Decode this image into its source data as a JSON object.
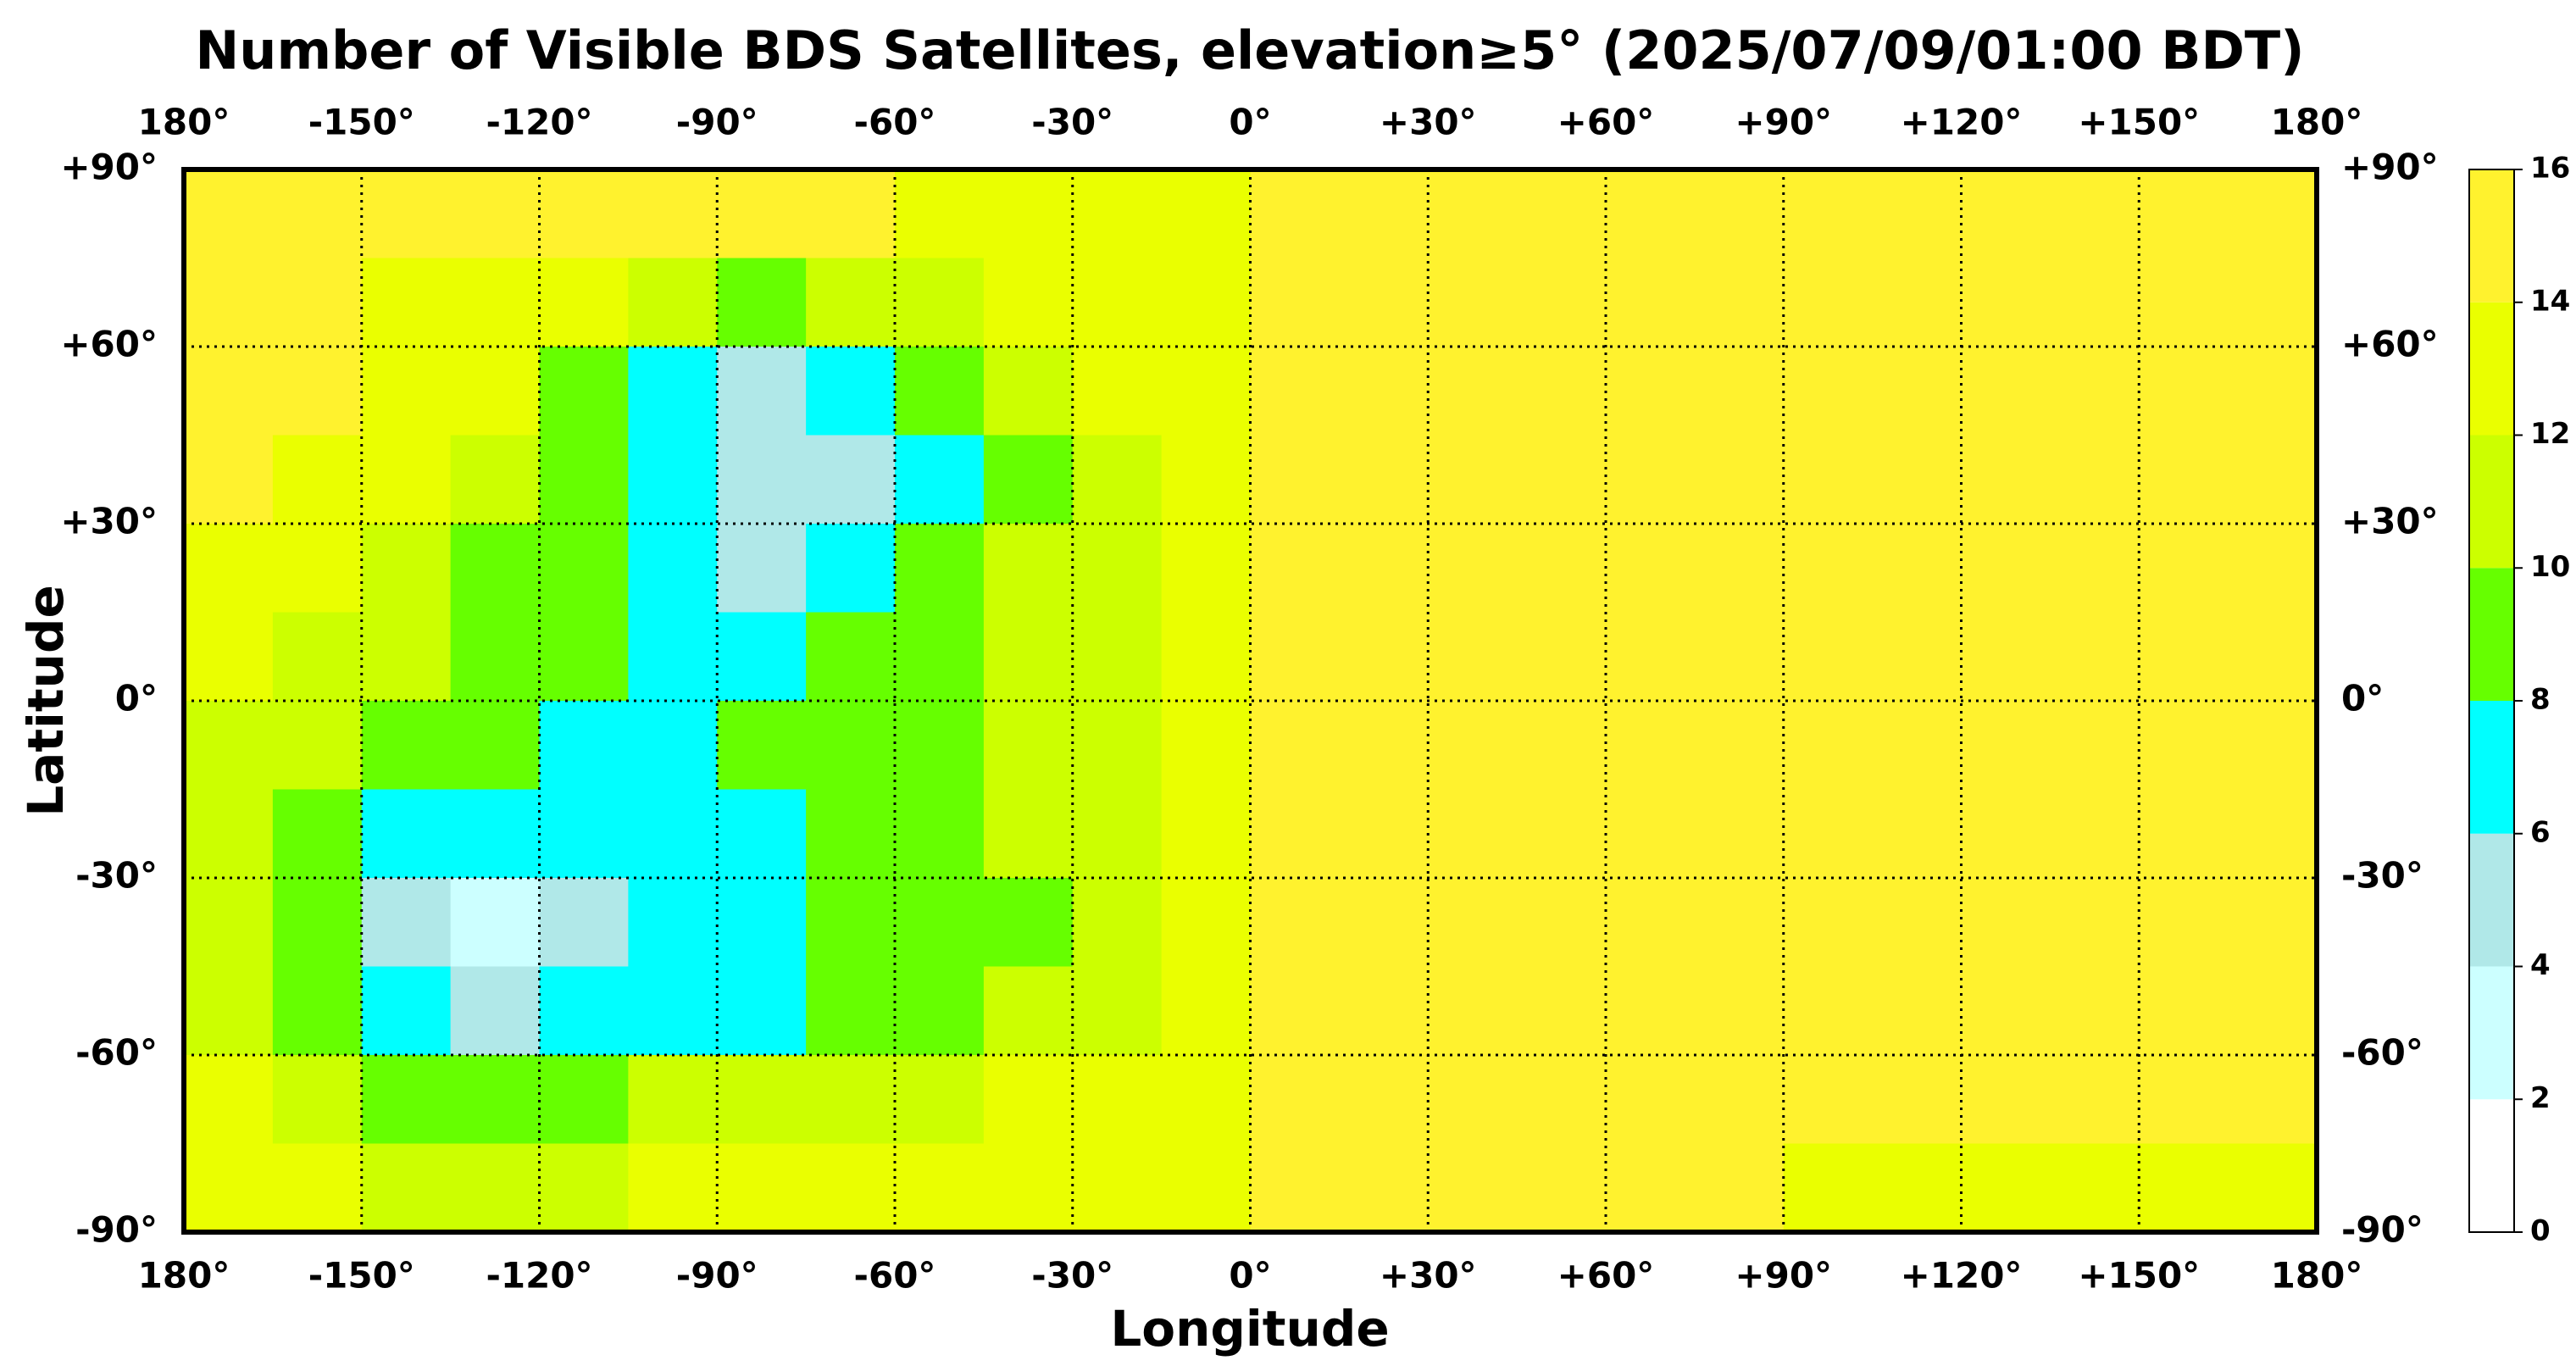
{
  "chart_data": {
    "type": "heatmap",
    "title": "Number of Visible BDS Satellites, elevation≥5° (2025/07/09/01:00 BDT)",
    "x_label": "Longitude",
    "y_label": "Latitude",
    "xlim": [
      -180,
      180
    ],
    "ylim": [
      -90,
      90
    ],
    "xticks": [
      {
        "value": -180,
        "label": "180°"
      },
      {
        "value": -150,
        "label": "-150°"
      },
      {
        "value": -120,
        "label": "-120°"
      },
      {
        "value": -90,
        "label": "-90°"
      },
      {
        "value": -60,
        "label": "-60°"
      },
      {
        "value": -30,
        "label": "-30°"
      },
      {
        "value": 0,
        "label": "0°"
      },
      {
        "value": 30,
        "label": "+30°"
      },
      {
        "value": 60,
        "label": "+60°"
      },
      {
        "value": 90,
        "label": "+90°"
      },
      {
        "value": 120,
        "label": "+120°"
      },
      {
        "value": 150,
        "label": "+150°"
      },
      {
        "value": 180,
        "label": "180°"
      }
    ],
    "yticks": [
      {
        "value": 90,
        "label": "+90°"
      },
      {
        "value": 60,
        "label": "+60°"
      },
      {
        "value": 30,
        "label": "+30°"
      },
      {
        "value": 0,
        "label": "0°"
      },
      {
        "value": -30,
        "label": "-30°"
      },
      {
        "value": -60,
        "label": "-60°"
      },
      {
        "value": -90,
        "label": "-90°"
      }
    ],
    "grid": true,
    "lon_bins": [
      -180,
      -165,
      -150,
      -135,
      -120,
      -105,
      -90,
      -75,
      -60,
      -45,
      -30,
      -15,
      0,
      15,
      30,
      45,
      60,
      75,
      90,
      105,
      120,
      135,
      150,
      165,
      180
    ],
    "lat_bins": [
      90,
      75,
      60,
      45,
      30,
      15,
      0,
      -15,
      -30,
      -45,
      -60,
      -75,
      -90
    ],
    "values": [
      [
        15,
        15,
        15,
        15,
        15,
        15,
        15,
        15,
        13,
        13,
        13,
        13,
        15,
        15,
        15,
        15,
        15,
        15,
        15,
        15,
        15,
        15,
        15,
        15
      ],
      [
        15,
        15,
        13,
        13,
        13,
        11,
        9,
        11,
        11,
        13,
        13,
        13,
        15,
        15,
        15,
        15,
        15,
        15,
        15,
        15,
        15,
        15,
        15,
        15
      ],
      [
        15,
        15,
        13,
        13,
        9,
        7,
        5,
        7,
        9,
        11,
        13,
        13,
        15,
        15,
        15,
        15,
        15,
        15,
        15,
        15,
        15,
        15,
        15,
        15
      ],
      [
        15,
        13,
        13,
        11,
        9,
        7,
        5,
        5,
        7,
        9,
        11,
        13,
        15,
        15,
        15,
        15,
        15,
        15,
        15,
        15,
        15,
        15,
        15,
        15
      ],
      [
        13,
        13,
        11,
        9,
        9,
        7,
        5,
        7,
        9,
        11,
        11,
        13,
        15,
        15,
        15,
        15,
        15,
        15,
        15,
        15,
        15,
        15,
        15,
        15
      ],
      [
        13,
        11,
        11,
        9,
        9,
        7,
        7,
        9,
        9,
        11,
        11,
        13,
        15,
        15,
        15,
        15,
        15,
        15,
        15,
        15,
        15,
        15,
        15,
        15
      ],
      [
        11,
        11,
        9,
        9,
        7,
        7,
        9,
        9,
        9,
        11,
        11,
        13,
        15,
        15,
        15,
        15,
        15,
        15,
        15,
        15,
        15,
        15,
        15,
        15
      ],
      [
        11,
        9,
        7,
        7,
        7,
        7,
        7,
        9,
        9,
        11,
        11,
        13,
        15,
        15,
        15,
        15,
        15,
        15,
        15,
        15,
        15,
        15,
        15,
        15
      ],
      [
        11,
        9,
        5,
        3,
        5,
        7,
        7,
        9,
        9,
        9,
        11,
        13,
        15,
        15,
        15,
        15,
        15,
        15,
        15,
        15,
        15,
        15,
        15,
        15
      ],
      [
        11,
        9,
        7,
        5,
        7,
        7,
        7,
        9,
        9,
        11,
        11,
        13,
        15,
        15,
        15,
        15,
        15,
        15,
        15,
        15,
        15,
        15,
        15,
        15
      ],
      [
        13,
        11,
        9,
        9,
        9,
        11,
        11,
        11,
        11,
        13,
        13,
        13,
        15,
        15,
        15,
        15,
        15,
        15,
        15,
        15,
        15,
        15,
        15,
        15
      ],
      [
        13,
        13,
        11,
        11,
        11,
        13,
        13,
        13,
        13,
        13,
        13,
        13,
        15,
        15,
        15,
        15,
        15,
        15,
        13,
        13,
        13,
        13,
        13,
        13
      ]
    ],
    "colorbar": {
      "ticks": [
        0,
        2,
        4,
        6,
        8,
        10,
        12,
        14,
        16
      ],
      "colors": [
        "#ffffff",
        "#ccffff",
        "#b0e8e8",
        "#00ffff",
        "#66ff00",
        "#ccff00",
        "#eaff00",
        "#fff22e"
      ]
    }
  }
}
